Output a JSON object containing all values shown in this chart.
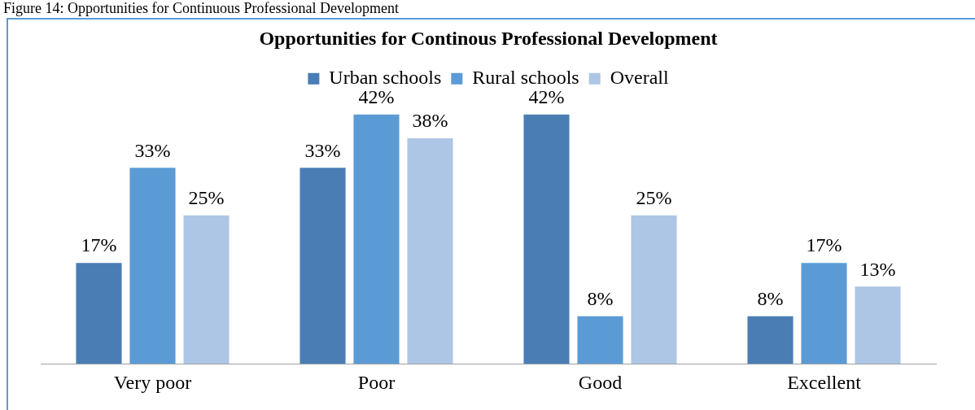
{
  "chart_data": {
    "type": "bar",
    "title": "Opportunities for Continous Professional Development",
    "annotations": [
      "Figure 14: Opportunities for Continuous Professional Development"
    ],
    "categories": [
      "Very poor",
      "Poor",
      "Good",
      "Excellent"
    ],
    "legend": "top",
    "grid": false,
    "series": [
      {
        "name": "Urban schools",
        "color": "#4a7db4",
        "values": [
          17,
          33,
          42,
          8
        ],
        "value_labels": [
          "17%",
          "33%",
          "42%",
          "8%"
        ]
      },
      {
        "name": "Rural schools",
        "color": "#5b9bd5",
        "values": [
          33,
          42,
          8,
          17
        ],
        "value_labels": [
          "33%",
          "42%",
          "8%",
          "17%"
        ]
      },
      {
        "name": "Overall",
        "color": "#adc6e6",
        "values": [
          25,
          38,
          25,
          13
        ],
        "value_labels": [
          "25%",
          "38%",
          "25%",
          "13%"
        ]
      }
    ]
  }
}
